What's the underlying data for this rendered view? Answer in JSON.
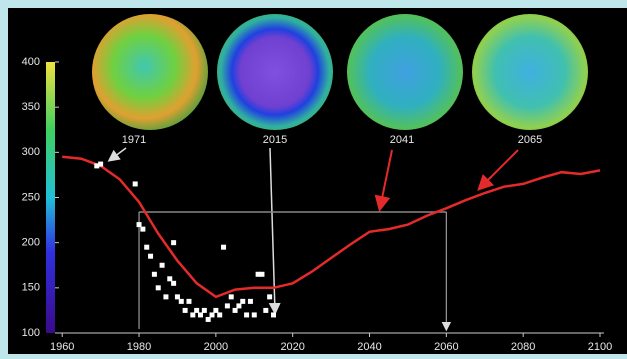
{
  "chart_data": {
    "type": "line",
    "annotations": [
      "1971",
      "2015",
      "2041",
      "2065"
    ],
    "xlim": [
      1955,
      2100
    ],
    "xticks": [
      1960,
      1980,
      2000,
      2020,
      2040,
      2060,
      2080,
      2100
    ],
    "ylim": [
      100,
      400
    ],
    "yticks": [
      100,
      150,
      200,
      250,
      300,
      350,
      400
    ],
    "hline": 234,
    "vlines": [
      1980,
      2060
    ],
    "series": [
      {
        "color": "#e42a2a",
        "x": [
          1960,
          1965,
          1970,
          1975,
          1980,
          1985,
          1990,
          1995,
          2000,
          2005,
          2010,
          2015,
          2020,
          2025,
          2030,
          2035,
          2040,
          2045,
          2050,
          2055,
          2060,
          2065,
          2070,
          2075,
          2080,
          2085,
          2090,
          2095,
          2100
        ],
        "values": [
          295,
          293,
          285,
          270,
          245,
          210,
          180,
          155,
          140,
          148,
          150,
          150,
          155,
          168,
          183,
          198,
          212,
          215,
          220,
          230,
          238,
          247,
          255,
          262,
          265,
          272,
          278,
          276,
          280
        ]
      },
      {
        "color": "#ffffff",
        "marker": "dot",
        "x": [
          1969,
          1970,
          1979,
          1980,
          1981,
          1982,
          1983,
          1984,
          1985,
          1986,
          1987,
          1988,
          1989,
          1989,
          1990,
          1991,
          1992,
          1993,
          1994,
          1995,
          1996,
          1997,
          1998,
          1999,
          2000,
          2001,
          2002,
          2003,
          2004,
          2005,
          2006,
          2007,
          2008,
          2009,
          2010,
          2011,
          2012,
          2013,
          2014,
          2015
        ],
        "values": [
          285,
          287,
          265,
          220,
          215,
          195,
          185,
          165,
          150,
          175,
          140,
          160,
          155,
          200,
          140,
          135,
          125,
          135,
          120,
          125,
          120,
          125,
          115,
          120,
          125,
          120,
          195,
          130,
          140,
          125,
          130,
          135,
          120,
          135,
          120,
          165,
          165,
          125,
          140,
          120
        ]
      }
    ]
  }
}
